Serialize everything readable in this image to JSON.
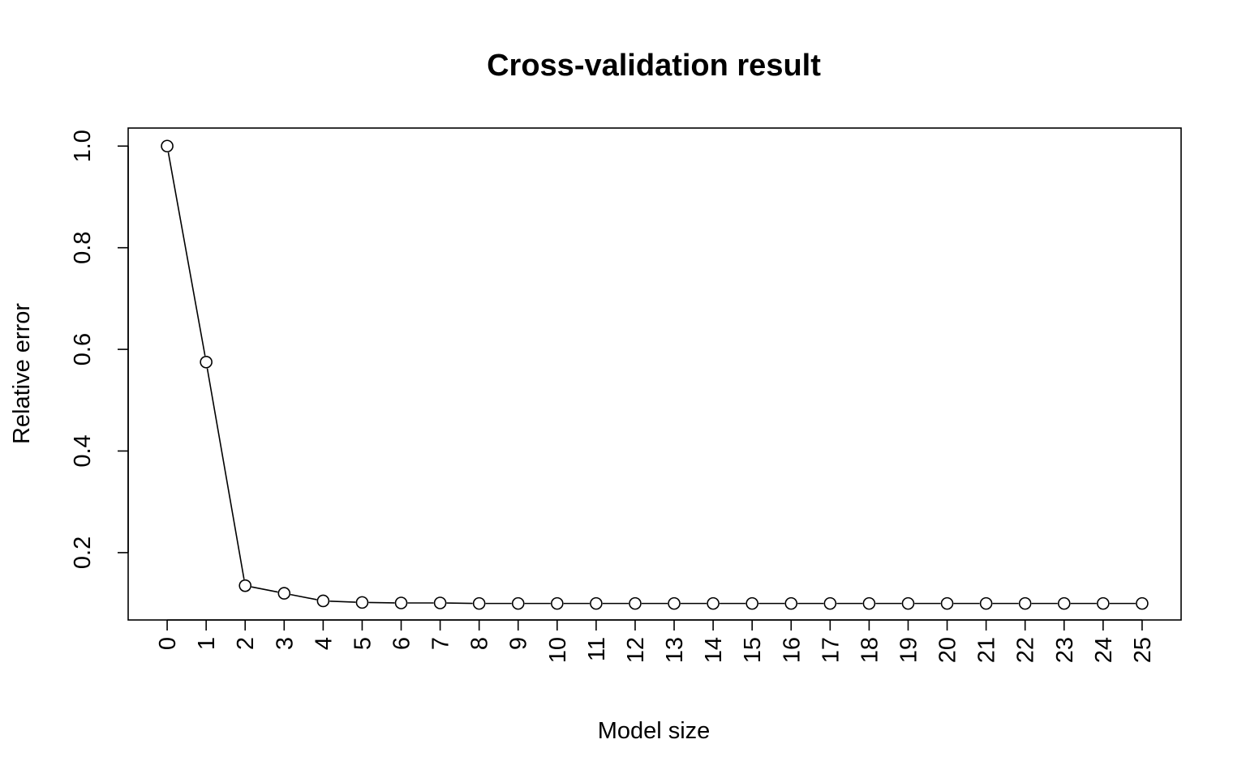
{
  "chart_data": {
    "type": "line",
    "title": "Cross-validation result",
    "xlabel": "Model size",
    "ylabel": "Relative error",
    "x": [
      0,
      1,
      2,
      3,
      4,
      5,
      6,
      7,
      8,
      9,
      10,
      11,
      12,
      13,
      14,
      15,
      16,
      17,
      18,
      19,
      20,
      21,
      22,
      23,
      24,
      25
    ],
    "x_tick_labels": [
      "0",
      "1",
      "2",
      "3",
      "4",
      "5",
      "6",
      "7",
      "8",
      "9",
      "10",
      "11",
      "12",
      "13",
      "14",
      "15",
      "16",
      "17",
      "18",
      "19",
      "20",
      "21",
      "22",
      "23",
      "24",
      "25"
    ],
    "y": [
      1.0,
      0.575,
      0.135,
      0.12,
      0.105,
      0.102,
      0.101,
      0.101,
      0.1,
      0.1,
      0.1,
      0.1,
      0.1,
      0.1,
      0.1,
      0.1,
      0.1,
      0.1,
      0.1,
      0.1,
      0.1,
      0.1,
      0.1,
      0.1,
      0.1,
      0.1
    ],
    "y_ticks": [
      0.2,
      0.4,
      0.6,
      0.8,
      1.0
    ],
    "y_tick_labels": [
      "0.2",
      "0.4",
      "0.6",
      "0.8",
      "1.0"
    ],
    "xlim": [
      -1,
      26
    ],
    "ylim": [
      0.0675,
      1.0355
    ],
    "marker": "open-circle",
    "line_color": "#000000",
    "grid": false,
    "legend": "none"
  }
}
